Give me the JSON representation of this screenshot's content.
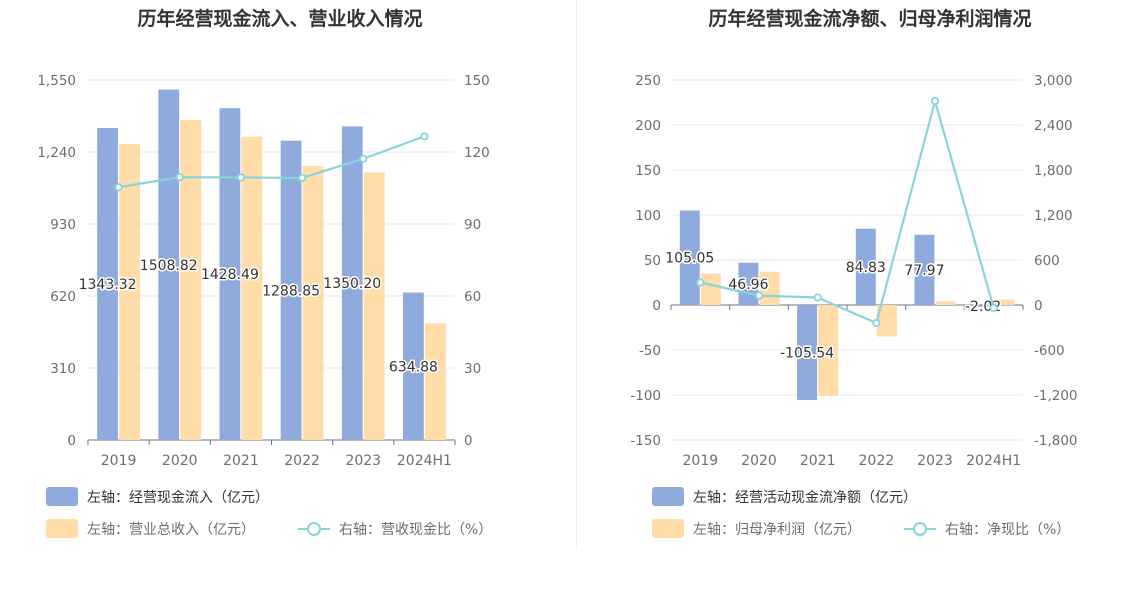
{
  "colors": {
    "blue": "#8faadc",
    "orange": "#ffdca8",
    "line": "#88d4da",
    "grid": "#e6eaf2",
    "axis": "#6e7079",
    "divider": "#eeeeee"
  },
  "chart_data": [
    {
      "type": "bar",
      "title": "历年经营现金流入、营业收入情况",
      "categories": [
        "2019",
        "2020",
        "2021",
        "2022",
        "2023",
        "2024H1"
      ],
      "left_axis": {
        "ylim": [
          0,
          1550
        ],
        "ticks": [
          "0",
          "310",
          "620",
          "930",
          "1,240",
          "1,550"
        ]
      },
      "right_axis": {
        "ylim": [
          0,
          150
        ],
        "ticks": [
          "0",
          "30",
          "60",
          "90",
          "120",
          "150"
        ]
      },
      "series": [
        {
          "name": "左轴：经营现金流入（亿元）",
          "axis": "left",
          "kind": "bar",
          "color_key": "blue",
          "values": [
            1343.32,
            1508.82,
            1428.49,
            1288.85,
            1350.2,
            634.88
          ],
          "labels": [
            "1343.32",
            "1508.82",
            "1428.49",
            "1288.85",
            "1350.20",
            "634.88"
          ]
        },
        {
          "name": "左轴：营业总收入（亿元）",
          "axis": "left",
          "kind": "bar",
          "color_key": "orange",
          "values": [
            1275,
            1378,
            1306,
            1180,
            1152,
            502
          ]
        },
        {
          "name": "右轴：营收现金比（%）",
          "axis": "right",
          "kind": "line",
          "color_key": "line",
          "values": [
            105.3,
            109.5,
            109.4,
            109.2,
            117.2,
            126.5
          ]
        }
      ]
    },
    {
      "type": "bar",
      "title": "历年经营现金流净额、归母净利润情况",
      "categories": [
        "2019",
        "2020",
        "2021",
        "2022",
        "2023",
        "2024H1"
      ],
      "left_axis": {
        "ylim": [
          -150,
          250
        ],
        "ticks": [
          "-150",
          "-100",
          "-50",
          "0",
          "50",
          "100",
          "150",
          "200",
          "250"
        ]
      },
      "right_axis": {
        "ylim": [
          -1800,
          3000
        ],
        "ticks": [
          "-1,800",
          "-1,200",
          "-600",
          "0",
          "600",
          "1,200",
          "1,800",
          "2,400",
          "3,000"
        ]
      },
      "series": [
        {
          "name": "左轴：经营活动现金流净额（亿元）",
          "axis": "left",
          "kind": "bar",
          "color_key": "blue",
          "values": [
            105.05,
            46.96,
            -105.54,
            84.83,
            77.97,
            -2.02
          ],
          "labels": [
            "105.05",
            "46.96",
            "-105.54",
            "84.83",
            "77.97",
            "-2.02"
          ]
        },
        {
          "name": "左轴：归母净利润（亿元）",
          "axis": "left",
          "kind": "bar",
          "color_key": "orange",
          "values": [
            35,
            37,
            -101,
            -35,
            4,
            6
          ]
        },
        {
          "name": "右轴：净现比（%）",
          "axis": "right",
          "kind": "line",
          "color_key": "line",
          "values": [
            300,
            125,
            100,
            -240,
            2720,
            -40
          ]
        }
      ]
    }
  ]
}
